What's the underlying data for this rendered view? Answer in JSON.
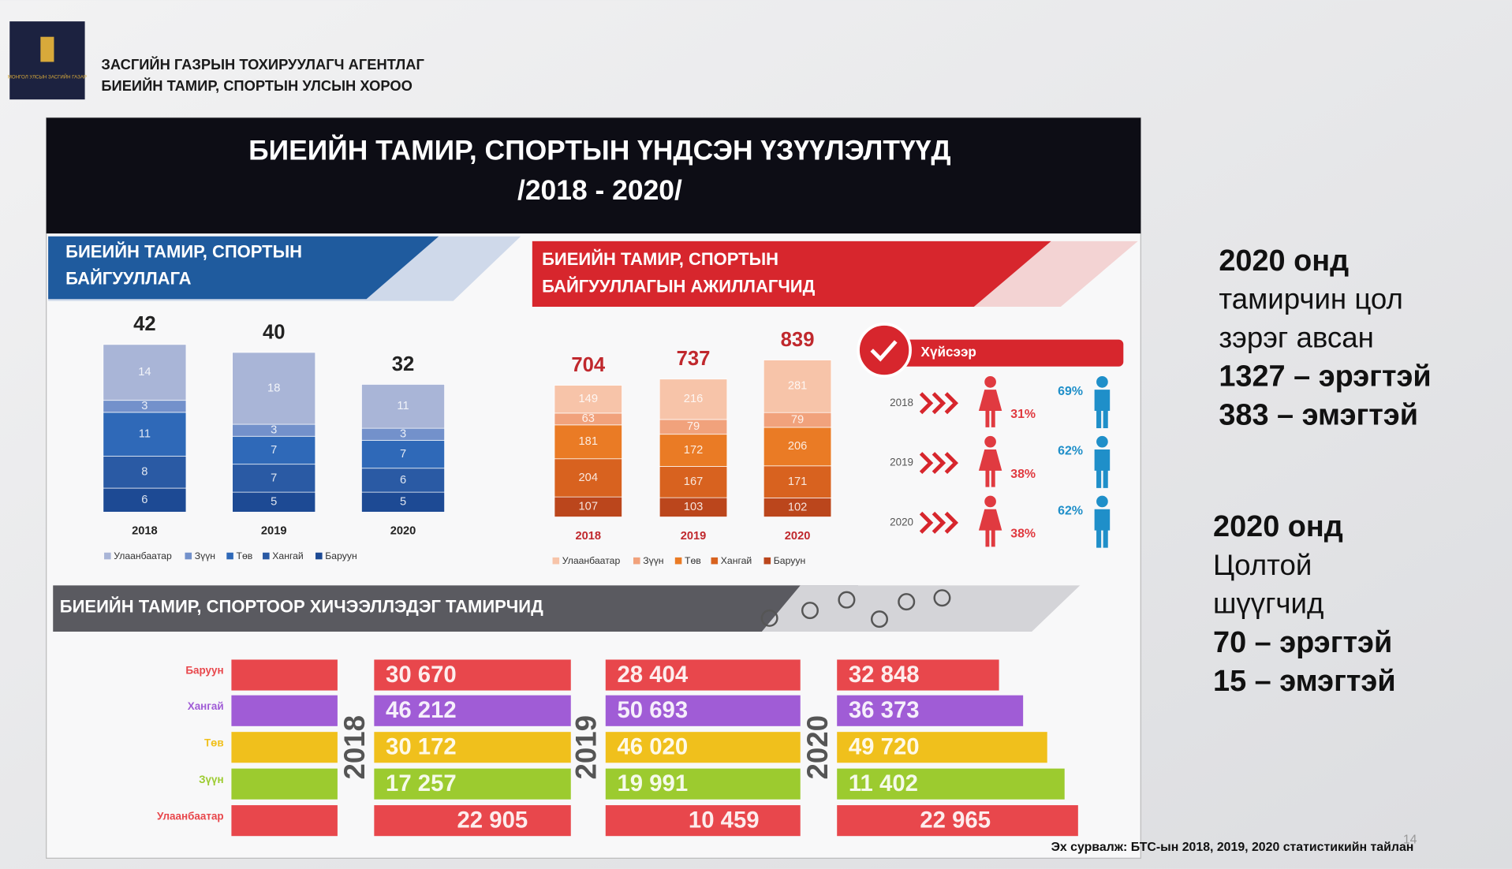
{
  "header": {
    "logo_text": "МОНГОЛ УЛСЫН ЗАСГИЙН ГАЗАР",
    "agency_line1": "ЗАСГИЙН ГАЗРЫН ТОХИРУУЛАГЧ АГЕНТЛАГ",
    "agency_line2": "БИЕИЙН ТАМИР, СПОРТЫН УЛСЫН ХОРОО"
  },
  "title": "БИЕИЙН ТАМИР, СПОРТЫН ҮНДСЭН ҮЗҮҮЛЭЛТҮҮД",
  "subtitle": "/2018 - 2020/",
  "chart_data": [
    {
      "type": "stacked_bar",
      "title": [
        "БИЕИЙН ТАМИР, СПОРТЫН",
        "БАЙГУУЛЛАГА"
      ],
      "categories": [
        "2018",
        "2019",
        "2020"
      ],
      "totals": [
        42,
        40,
        32
      ],
      "series": [
        {
          "name": "Улаанбаатар",
          "color": "#a9b5d7",
          "values": [
            14,
            18,
            11
          ]
        },
        {
          "name": "Зүүн",
          "color": "#7391cb",
          "values": [
            3,
            3,
            3
          ]
        },
        {
          "name": "Төв",
          "color": "#2f69b8",
          "values": [
            11,
            7,
            7
          ]
        },
        {
          "name": "Хангай",
          "color": "#2a5aa4",
          "values": [
            8,
            7,
            6
          ]
        },
        {
          "name": "Баруун",
          "color": "#1d4a94",
          "values": [
            6,
            5,
            5
          ]
        }
      ],
      "legend": "bottom"
    },
    {
      "type": "stacked_bar",
      "title": [
        "БИЕИЙН ТАМИР, СПОРТЫН",
        "БАЙГУУЛЛАГЫН АЖИЛЛАГЧИД"
      ],
      "categories": [
        "2018",
        "2019",
        "2020"
      ],
      "totals": [
        704,
        737,
        839
      ],
      "series": [
        {
          "name": "Улаанбаатар",
          "color": "#f7c4a9",
          "values": [
            149,
            216,
            281
          ]
        },
        {
          "name": "Зүүн",
          "color": "#f1a27c",
          "values": [
            63,
            79,
            79
          ]
        },
        {
          "name": "Төв",
          "color": "#ea7b25",
          "values": [
            181,
            172,
            206
          ]
        },
        {
          "name": "Хангай",
          "color": "#d8621f",
          "values": [
            204,
            167,
            171
          ]
        },
        {
          "name": "Баруун",
          "color": "#bb461c",
          "values": [
            107,
            103,
            102
          ]
        }
      ],
      "legend": "bottom"
    },
    {
      "type": "pictograph",
      "title": "Хүйсээр",
      "categories": [
        "2018",
        "2019",
        "2020"
      ],
      "series": [
        {
          "color": "#e03a40",
          "values": [
            31,
            38,
            38
          ],
          "value_labels": [
            "31%",
            "38%",
            "38%"
          ]
        },
        {
          "color": "#1f8fc9",
          "values": [
            69,
            62,
            62
          ],
          "value_labels": [
            "69%",
            "62%",
            "62%"
          ]
        }
      ]
    },
    {
      "type": "grouped_hbar",
      "title": "БИЕИЙН ТАМИР, СПОРТООР ХИЧЭЭЛЛЭДЭГ ТАМИРЧИД",
      "categories": [
        "Баруун",
        "Хангай",
        "Төв",
        "Зүүн",
        "Улаанбаатар"
      ],
      "colors": [
        "#e8474c",
        "#a05cd6",
        "#f0c01c",
        "#9ccb2f",
        "#e8474c"
      ],
      "series": [
        {
          "name": "2018",
          "values": [
            30670,
            46212,
            30172,
            17257,
            22905
          ],
          "value_labels": [
            "30 670",
            "46 212",
            "30 172",
            "17 257",
            "22 905"
          ]
        },
        {
          "name": "2019",
          "values": [
            28404,
            50693,
            46020,
            19991,
            10459
          ],
          "value_labels": [
            "28 404",
            "50 693",
            "46 020",
            "19 991",
            "10 459"
          ]
        },
        {
          "name": "2020",
          "values": [
            32848,
            36373,
            49720,
            11402,
            22965
          ],
          "value_labels": [
            "32 848",
            "36 373",
            "49 720",
            "11 402",
            "22 965"
          ]
        }
      ]
    }
  ],
  "notes": [
    {
      "lines": [
        "2020 онд",
        "тамирчин цол",
        "зэрэг авсан",
        "1327 – эрэгтэй",
        "383 – эмэгтэй"
      ]
    },
    {
      "lines": [
        "2020 онд",
        "Цолтой",
        "шүүгчид",
        "70 – эрэгтэй",
        "15 – эмэгтэй"
      ]
    }
  ],
  "source": "Эх сурвалж: БТС-ын 2018, 2019, 2020 статистикийн тайлан",
  "page_number": "14"
}
